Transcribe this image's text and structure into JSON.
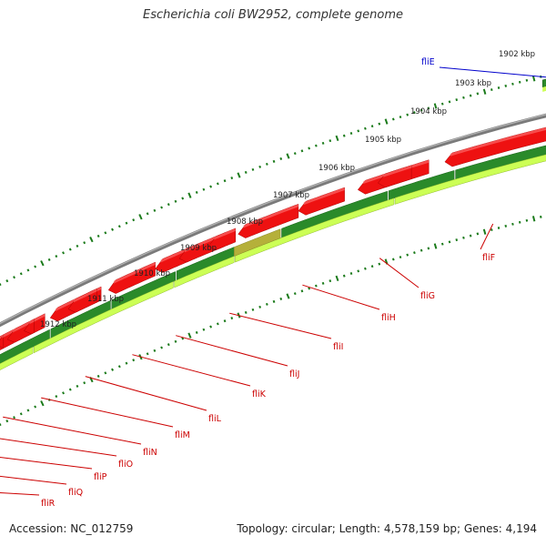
{
  "title": "Escherichia coli BW2952, complete genome",
  "footer": {
    "accession": "Accession: NC_012759",
    "summary": "Topology: circular; Length: 4,578,159 bp; Genes: 4,194"
  },
  "colors": {
    "backbone": "#7a7a7a",
    "cds_forward": "#ee1111",
    "gene_forward": "#0000ee",
    "track_dark": "#2a8a2a",
    "track_light": "#ccff55",
    "tick": "#1a7a1a",
    "label_red": "#cc0000",
    "label_blue": "#0000cc"
  },
  "kbp_labels": [
    "1902 kbp",
    "1903 kbp",
    "1904 kbp",
    "1905 kbp",
    "1906 kbp",
    "1907 kbp",
    "1908 kbp",
    "1909 kbp",
    "1910 kbp",
    "1911 kbp",
    "1912 kbp"
  ],
  "genes": [
    {
      "name": "fliE",
      "strand": "forward"
    },
    {
      "name": "fliF",
      "strand": "reverse"
    },
    {
      "name": "fliG",
      "strand": "reverse"
    },
    {
      "name": "fliH",
      "strand": "reverse"
    },
    {
      "name": "fliI",
      "strand": "reverse"
    },
    {
      "name": "fliJ",
      "strand": "reverse"
    },
    {
      "name": "fliK",
      "strand": "reverse"
    },
    {
      "name": "fliL",
      "strand": "reverse"
    },
    {
      "name": "fliM",
      "strand": "reverse"
    },
    {
      "name": "fliN",
      "strand": "reverse"
    },
    {
      "name": "fliO",
      "strand": "reverse"
    },
    {
      "name": "fliP",
      "strand": "reverse"
    },
    {
      "name": "fliQ",
      "strand": "reverse"
    },
    {
      "name": "fliR",
      "strand": "reverse"
    }
  ]
}
